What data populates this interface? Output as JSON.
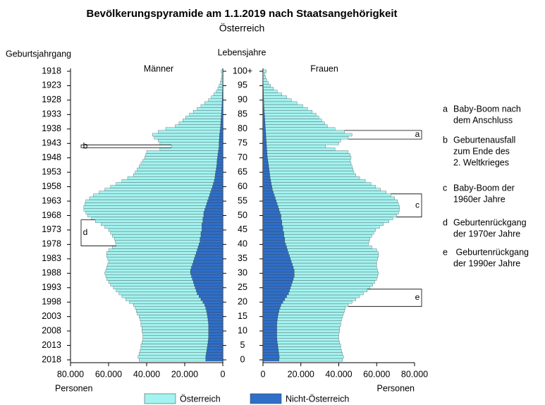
{
  "chart_data": {
    "type": "pyramid",
    "title": "Bevölkerungspyramide am 1.1.2019 nach Staatsangehörigkeit",
    "subtitle": "Österreich",
    "y_axis_label": "Geburtsjahrgang",
    "age_axis_label": "Lebensjahre",
    "x_axis_label": "Personen",
    "categories": [
      "0",
      null,
      null,
      null,
      null,
      "5",
      null,
      null,
      null,
      null,
      "10",
      null,
      null,
      null,
      null,
      "15",
      null,
      null,
      null,
      null,
      "20",
      null,
      null,
      null,
      null,
      "25",
      null,
      null,
      null,
      null,
      "30",
      null,
      null,
      null,
      null,
      "35",
      null,
      null,
      null,
      null,
      "40",
      null,
      null,
      null,
      null,
      "45",
      null,
      null,
      null,
      null,
      "50",
      null,
      null,
      null,
      null,
      "55",
      null,
      null,
      null,
      null,
      "60",
      null,
      null,
      null,
      null,
      "65",
      null,
      null,
      null,
      null,
      "70",
      null,
      null,
      null,
      null,
      "75",
      null,
      null,
      null,
      null,
      "80",
      null,
      null,
      null,
      null,
      "85",
      null,
      null,
      null,
      null,
      "90",
      null,
      null,
      null,
      null,
      "95",
      null,
      null,
      null,
      null,
      "100+"
    ],
    "birth_years": [
      "2018",
      null,
      null,
      null,
      null,
      "2013",
      null,
      null,
      null,
      null,
      "2008",
      null,
      null,
      null,
      null,
      "2003",
      null,
      null,
      null,
      null,
      "1998",
      null,
      null,
      null,
      null,
      "1993",
      null,
      null,
      null,
      null,
      "1988",
      null,
      null,
      null,
      null,
      "1983",
      null,
      null,
      null,
      null,
      "1978",
      null,
      null,
      null,
      null,
      "1973",
      null,
      null,
      null,
      null,
      "1968",
      null,
      null,
      null,
      null,
      "1963",
      null,
      null,
      null,
      null,
      "1958",
      null,
      null,
      null,
      null,
      "1953",
      null,
      null,
      null,
      null,
      "1948",
      null,
      null,
      null,
      null,
      "1943",
      null,
      null,
      null,
      null,
      "1938",
      null,
      null,
      null,
      null,
      "1933",
      null,
      null,
      null,
      null,
      "1928",
      null,
      null,
      null,
      null,
      "1923",
      null,
      null,
      null,
      null,
      "1918"
    ],
    "panels": [
      {
        "name": "Männer",
        "xlim": [
          80000,
          0
        ],
        "xticks": [
          {
            "value": 80000,
            "label": "80.000"
          },
          {
            "value": 60000,
            "label": "60.000"
          },
          {
            "value": 40000,
            "label": "40.000"
          },
          {
            "value": 20000,
            "label": "20.000"
          },
          0
        ],
        "series": [
          {
            "name": "Nicht-Österreich",
            "color": "#2f6fc8",
            "values": [
              9000,
              9000,
              8800,
              8500,
              8300,
              8000,
              7800,
              7600,
              7500,
              7500,
              7500,
              7500,
              7500,
              7600,
              7800,
              8000,
              8300,
              8600,
              9000,
              9500,
              10500,
              11500,
              12500,
              13500,
              14000,
              14500,
              15000,
              15500,
              16000,
              16500,
              17000,
              17000,
              16500,
              16000,
              15500,
              15000,
              14500,
              14000,
              13500,
              13000,
              12500,
              12000,
              12000,
              11500,
              11500,
              11000,
              11000,
              11000,
              10500,
              10500,
              10000,
              10000,
              9500,
              9000,
              8500,
              8000,
              7500,
              7000,
              6500,
              6000,
              5500,
              5000,
              4500,
              4200,
              4000,
              3800,
              3500,
              3300,
              3100,
              3000,
              2800,
              2600,
              2400,
              2200,
              2000,
              2000,
              1900,
              1800,
              1700,
              1500,
              1300,
              1200,
              1100,
              1000,
              900,
              800,
              700,
              600,
              500,
              400,
              350,
              300,
              250,
              200,
              150,
              120,
              100,
              80,
              60,
              40,
              60
            ]
          },
          {
            "name": "Österreich",
            "color": "#a3f3f0",
            "values": [
              35000,
              35500,
              35200,
              35000,
              34700,
              35000,
              34700,
              34400,
              34500,
              34500,
              35000,
              35000,
              35500,
              35400,
              35700,
              36000,
              36700,
              36900,
              37000,
              37500,
              38500,
              39500,
              40500,
              41000,
              42000,
              43000,
              44000,
              44500,
              45000,
              45000,
              45000,
              44500,
              44500,
              44500,
              44500,
              45500,
              46500,
              47000,
              46500,
              45000,
              43500,
              44500,
              45000,
              46500,
              47500,
              49000,
              51000,
              53000,
              56500,
              58500,
              61000,
              62000,
              63500,
              64000,
              64000,
              64000,
              62500,
              61000,
              58500,
              56000,
              53500,
              51000,
              48500,
              45800,
              43000,
              42200,
              41500,
              40700,
              39900,
              39000,
              38200,
              37900,
              37600,
              30800,
              25000,
              31000,
              32100,
              34200,
              35300,
              32500,
              28700,
              23800,
              21900,
              20000,
              18600,
              16700,
              14800,
              12900,
              11000,
              9100,
              7150,
              5700,
              4450,
              3300,
              2450,
              1780,
              1200,
              820,
              540,
              360,
              740
            ]
          }
        ]
      },
      {
        "name": "Frauen",
        "xlim": [
          0,
          80000
        ],
        "xticks": [
          0,
          {
            "value": 20000,
            "label": "20.000"
          },
          {
            "value": 40000,
            "label": "40.000"
          },
          {
            "value": 60000,
            "label": "60.000"
          },
          {
            "value": 80000,
            "label": "80.000"
          }
        ],
        "series": [
          {
            "name": "Nicht-Österreich",
            "color": "#2f6fc8",
            "values": [
              8500,
              8600,
              8400,
              8200,
              8000,
              7800,
              7600,
              7400,
              7300,
              7300,
              7300,
              7300,
              7300,
              7400,
              7600,
              7800,
              8100,
              8500,
              9000,
              9500,
              10500,
              11500,
              12500,
              13500,
              14000,
              14500,
              15000,
              15500,
              16000,
              16500,
              16500,
              16500,
              16000,
              15500,
              15000,
              14500,
              14000,
              13500,
              13000,
              12500,
              12000,
              11500,
              11500,
              11000,
              11000,
              10500,
              10500,
              10000,
              10000,
              9500,
              9500,
              9000,
              8500,
              8000,
              7500,
              7000,
              6500,
              6000,
              5500,
              5000,
              4700,
              4400,
              4100,
              3800,
              3600,
              3400,
              3200,
              3000,
              2800,
              2600,
              2400,
              2200,
              2100,
              2000,
              1900,
              1800,
              1700,
              1600,
              1500,
              1400,
              1300,
              1200,
              1100,
              1000,
              900,
              800,
              700,
              600,
              500,
              450,
              400,
              350,
              300,
              250,
              200,
              150,
              120,
              100,
              80,
              60,
              100
            ]
          },
          {
            "name": "Österreich",
            "color": "#a3f3f0",
            "values": [
              33500,
              33900,
              33600,
              33300,
              33000,
              33200,
              32900,
              32600,
              32700,
              32700,
              33200,
              33200,
              33700,
              33600,
              33900,
              34200,
              34400,
              34500,
              34500,
              35500,
              36500,
              37500,
              38500,
              39500,
              41000,
              42000,
              43000,
              43500,
              44000,
              44000,
              44500,
              44000,
              44000,
              44500,
              45000,
              46000,
              47000,
              47500,
              47000,
              45000,
              43500,
              44500,
              45000,
              46500,
              47500,
              49000,
              51000,
              53500,
              56500,
              59000,
              61000,
              62500,
              63500,
              64000,
              64000,
              64000,
              63000,
              61500,
              59500,
              57000,
              54800,
              52600,
              49900,
              47200,
              45400,
              44600,
              44300,
              44000,
              43700,
              43400,
              44100,
              43800,
              42900,
              36000,
              31100,
              38200,
              39300,
              43400,
              45500,
              41600,
              36700,
              32800,
              31400,
              30000,
              28600,
              27200,
              25300,
              22900,
              20500,
              17550,
              14600,
              12150,
              9700,
              7250,
              5300,
              3850,
              2680,
              1800,
              1220,
              740,
              1700
            ]
          }
        ]
      }
    ],
    "legend": [
      "Österreich",
      "Nicht-Österreich"
    ],
    "annotations": [
      {
        "letter": "a",
        "lines": [
          "Baby-Boom nach",
          "dem Anschluss"
        ],
        "panel": 1,
        "range": [
          77,
          79
        ]
      },
      {
        "letter": "b",
        "lines": [
          "Geburtenausfall",
          "zum Ende des",
          "2. Weltkrieges"
        ],
        "panel": 0,
        "range": [
          74,
          74
        ]
      },
      {
        "letter": "c",
        "lines": [
          "Baby-Boom der",
          "1960er Jahre"
        ],
        "panel": 1,
        "range": [
          50,
          57
        ]
      },
      {
        "letter": "d",
        "lines": [
          "Geburtenrückgang",
          "der 1970er Jahre"
        ],
        "panel": 0,
        "range": [
          40,
          48
        ]
      },
      {
        "letter": "e",
        "lines": [
          " Geburtenrückgang",
          "der 1990er Jahre"
        ],
        "panel": 1,
        "range": [
          19,
          24
        ]
      }
    ]
  }
}
